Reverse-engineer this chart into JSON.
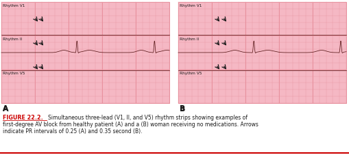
{
  "bg_color": "#f5b8c4",
  "grid_color": "#e8919e",
  "ecg_color": "#5a1a1a",
  "arrow_color": "#1a1a1a",
  "panel_A_label": "A",
  "panel_B_label": "B",
  "leads": [
    "Rhythm V1",
    "Rhythm II",
    "Rhythm V5"
  ],
  "figure_label": "FIGURE 22.2.",
  "caption_line1": "Simultaneous three-lead (V1, II, and V5) rhythm strips showing examples of",
  "caption_line2": "first-degree AV block from healthy patient (A) and a (B) woman receiving no medications. Arrows",
  "caption_line3": "indicate PR intervals of 0.25 (A) and 0.35 second (B).",
  "label_color_figure": "#cc0000",
  "text_color": "#1a1a1a",
  "bottom_line_color": "#cc0000",
  "figsize": [
    5.1,
    2.27
  ],
  "dpi": 100
}
